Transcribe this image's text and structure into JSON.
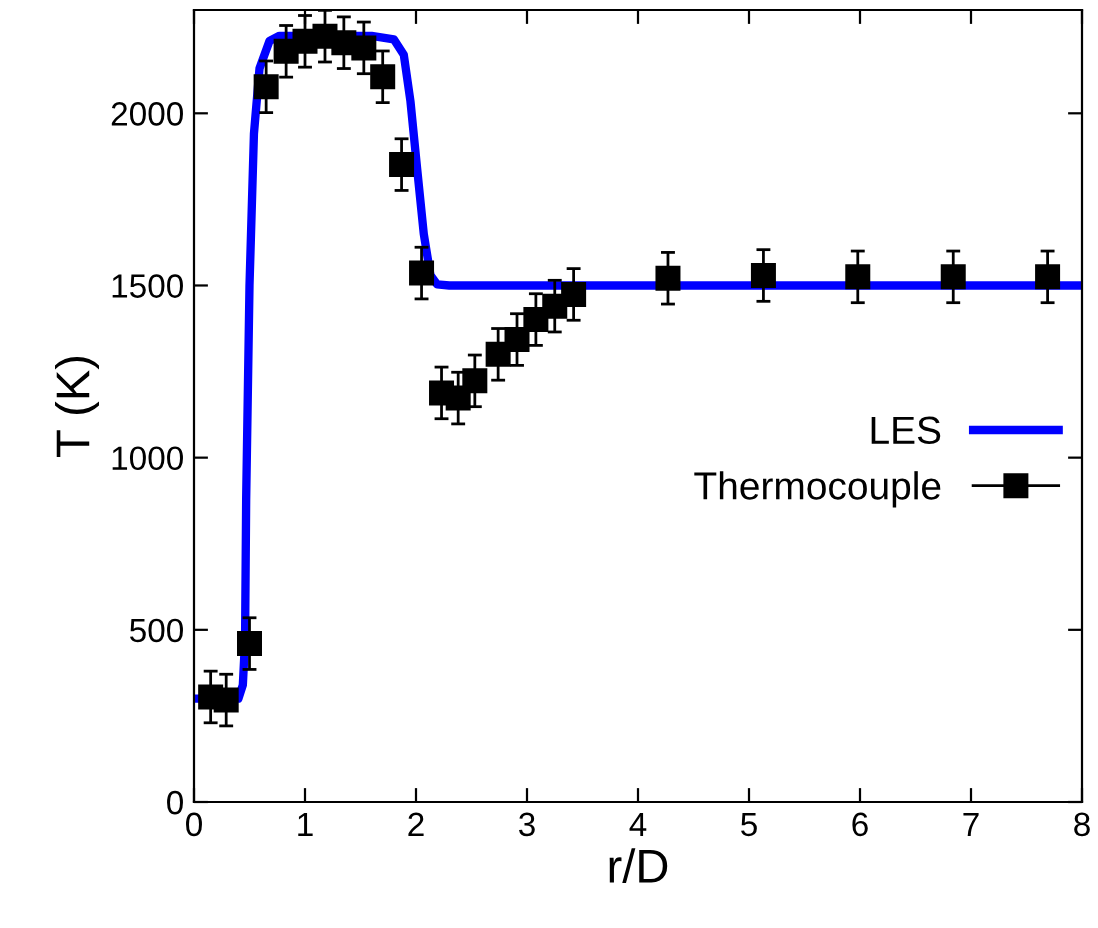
{
  "chart_data": {
    "type": "line",
    "xlabel": "r/D",
    "ylabel": "T (K)",
    "xlim": [
      0,
      8
    ],
    "ylim": [
      0,
      2300
    ],
    "xticks": [
      0,
      1,
      2,
      3,
      4,
      5,
      6,
      7,
      8
    ],
    "yticks": [
      0,
      500,
      1000,
      1500,
      2000
    ],
    "legend": "right",
    "grid": false,
    "series": [
      {
        "name": "LES",
        "color": "#0000ff",
        "line_style": "solid",
        "marker": "none",
        "x": [
          0,
          0.4,
          0.44,
          0.46,
          0.47,
          0.5,
          0.54,
          0.59,
          0.68,
          0.77,
          1.6,
          1.8,
          1.89,
          1.95,
          2.01,
          2.07,
          2.13,
          2.19,
          2.3,
          8
        ],
        "values": [
          300,
          300,
          340,
          470,
          880,
          1500,
          1940,
          2130,
          2210,
          2225,
          2225,
          2215,
          2170,
          2035,
          1840,
          1650,
          1530,
          1503,
          1500,
          1500
        ]
      },
      {
        "name": "Thermocouple",
        "type": "scatter",
        "color": "#000000",
        "marker": "square",
        "x": [
          0.15,
          0.29,
          0.5,
          0.65,
          0.83,
          1.0,
          1.18,
          1.35,
          1.53,
          1.7,
          1.87,
          2.05,
          2.23,
          2.38,
          2.53,
          2.74,
          2.91,
          3.08,
          3.25,
          3.42,
          4.27,
          5.13,
          5.98,
          6.84,
          7.69
        ],
        "values": [
          305,
          296,
          460,
          2077,
          2180,
          2209,
          2224,
          2205,
          2190,
          2106,
          1851,
          1536,
          1188,
          1173,
          1223,
          1300,
          1343,
          1401,
          1440,
          1474,
          1521,
          1529,
          1525,
          1525,
          1525
        ],
        "errors": [
          75,
          75,
          75,
          75,
          75,
          75,
          75,
          75,
          75,
          75,
          75,
          75,
          75,
          75,
          75,
          75,
          75,
          75,
          75,
          75,
          75,
          75,
          75,
          75,
          75
        ]
      }
    ]
  }
}
